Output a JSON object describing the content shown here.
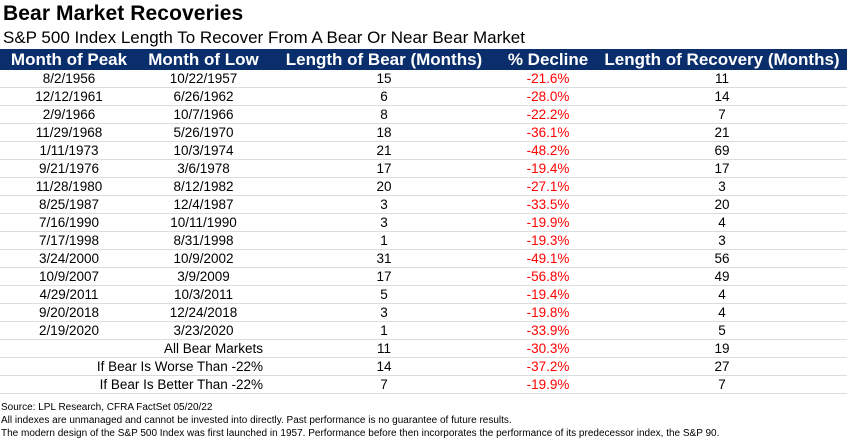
{
  "header": {
    "title": "Bear Market Recoveries",
    "subtitle": "S&P 500 Index Length To Recover From A Bear Or Near Bear Market"
  },
  "chart_data": {
    "type": "table",
    "title": "Bear Market Recoveries",
    "subtitle": "S&P 500 Index Length To Recover From A Bear Or Near Bear Market",
    "columns": [
      "Month of Peak",
      "Month of Low",
      "Length of Bear (Months)",
      "% Decline",
      "Length of Recovery (Months)"
    ],
    "rows": [
      [
        "8/2/1956",
        "10/22/1957",
        "15",
        "-21.6%",
        "11"
      ],
      [
        "12/12/1961",
        "6/26/1962",
        "6",
        "-28.0%",
        "14"
      ],
      [
        "2/9/1966",
        "10/7/1966",
        "8",
        "-22.2%",
        "7"
      ],
      [
        "11/29/1968",
        "5/26/1970",
        "18",
        "-36.1%",
        "21"
      ],
      [
        "1/11/1973",
        "10/3/1974",
        "21",
        "-48.2%",
        "69"
      ],
      [
        "9/21/1976",
        "3/6/1978",
        "17",
        "-19.4%",
        "17"
      ],
      [
        "11/28/1980",
        "8/12/1982",
        "20",
        "-27.1%",
        "3"
      ],
      [
        "8/25/1987",
        "12/4/1987",
        "3",
        "-33.5%",
        "20"
      ],
      [
        "7/16/1990",
        "10/11/1990",
        "3",
        "-19.9%",
        "4"
      ],
      [
        "7/17/1998",
        "8/31/1998",
        "1",
        "-19.3%",
        "3"
      ],
      [
        "3/24/2000",
        "10/9/2002",
        "31",
        "-49.1%",
        "56"
      ],
      [
        "10/9/2007",
        "3/9/2009",
        "17",
        "-56.8%",
        "49"
      ],
      [
        "4/29/2011",
        "10/3/2011",
        "5",
        "-19.4%",
        "4"
      ],
      [
        "9/20/2018",
        "12/24/2018",
        "3",
        "-19.8%",
        "4"
      ],
      [
        "2/19/2020",
        "3/23/2020",
        "1",
        "-33.9%",
        "5"
      ]
    ],
    "summary": [
      {
        "label": "All Bear Markets",
        "bear": "11",
        "decline": "-30.3%",
        "recovery": "19"
      },
      {
        "label": "If Bear Is Worse Than -22%",
        "bear": "14",
        "decline": "-37.2%",
        "recovery": "27"
      },
      {
        "label": "If Bear Is Better Than -22%",
        "bear": "7",
        "decline": "-19.9%",
        "recovery": "7"
      }
    ]
  },
  "footnotes": [
    "Source: LPL Research, CFRA FactSet 05/20/22",
    "All indexes are unmanaged and cannot be invested into directly. Past performance is no guarantee of future results.",
    "The modern design of the S&P 500 Index was first launched in 1957. Performance before then incorporates the performance of its predecessor index, the S&P 90."
  ],
  "colors": {
    "header_bg": "#0a2d6c",
    "header_text": "#ffffff",
    "negative": "#ff0000"
  }
}
